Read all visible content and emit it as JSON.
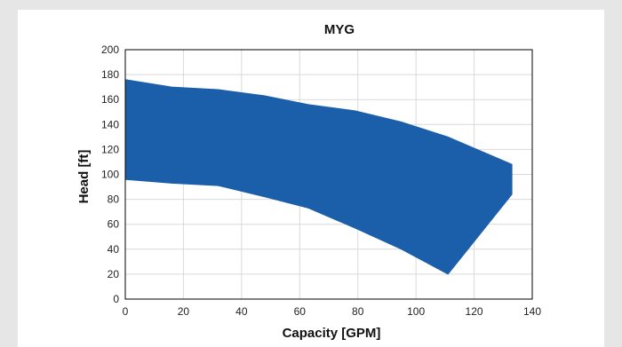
{
  "chart_data": {
    "type": "area",
    "title": "MYG",
    "xlabel": "Capacity [GPM]",
    "ylabel": "Head [ft]",
    "xlim": [
      0,
      140
    ],
    "ylim": [
      0,
      200
    ],
    "xticks": [
      0,
      20,
      40,
      60,
      80,
      100,
      120,
      140
    ],
    "yticks": [
      0,
      20,
      40,
      60,
      80,
      100,
      120,
      140,
      160,
      180,
      200
    ],
    "grid": true,
    "color": "#1b5faa",
    "series": [
      {
        "upper": [
          [
            0,
            176
          ],
          [
            16,
            170
          ],
          [
            32,
            168
          ],
          [
            48,
            163
          ],
          [
            63,
            156
          ],
          [
            79,
            151
          ],
          [
            95,
            142
          ],
          [
            111,
            130
          ],
          [
            133,
            108
          ]
        ],
        "lower": [
          [
            0,
            96
          ],
          [
            16,
            93
          ],
          [
            32,
            91
          ],
          [
            48,
            82
          ],
          [
            63,
            73
          ],
          [
            79,
            57
          ],
          [
            95,
            40
          ],
          [
            111,
            20
          ],
          [
            133,
            84
          ]
        ]
      }
    ]
  }
}
